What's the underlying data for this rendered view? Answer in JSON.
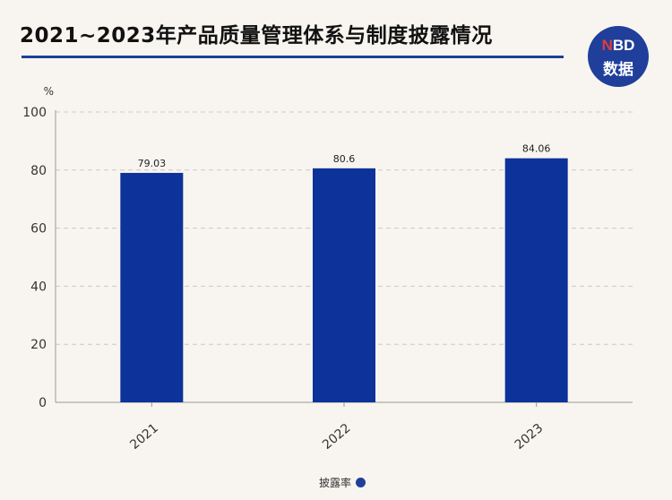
{
  "title": "2021~2023年产品质量管理体系与制度披露情况",
  "logo": {
    "line1_accent": "N",
    "line1_rest": "BD",
    "line2": "数据"
  },
  "chart_data": {
    "type": "bar",
    "categories": [
      "2021",
      "2022",
      "2023"
    ],
    "series": [
      {
        "name": "披露率",
        "values": [
          79.03,
          80.6,
          84.06
        ],
        "color": "#0d3299"
      }
    ],
    "ylabel": "%",
    "xlabel": "",
    "ylim": [
      0,
      100
    ],
    "yticks": [
      0,
      20,
      40,
      60,
      80,
      100
    ],
    "grid": true,
    "legend": "bottom-center"
  }
}
